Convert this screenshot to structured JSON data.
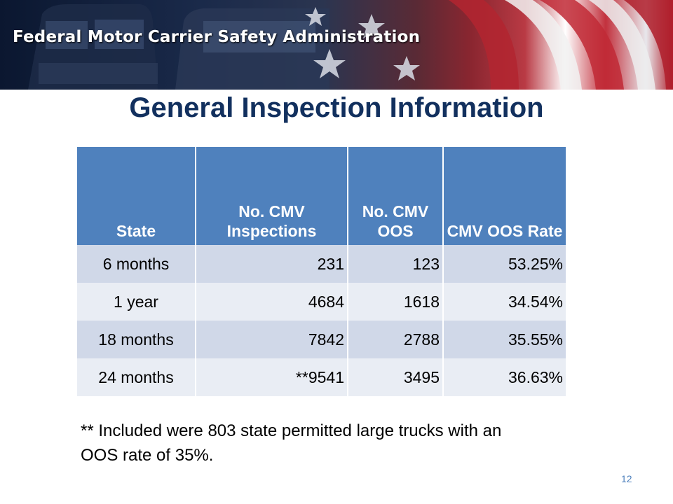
{
  "banner": {
    "agency": "Federal Motor Carrier Safety Administration"
  },
  "title": "General Inspection Information",
  "table": {
    "headers": [
      "State",
      "No. CMV Inspections",
      "No. CMV OOS",
      "CMV OOS Rate"
    ],
    "rows": [
      [
        "6 months",
        "231",
        "123",
        "53.25%"
      ],
      [
        "1 year",
        "4684",
        "1618",
        "34.54%"
      ],
      [
        "18 months",
        "7842",
        "2788",
        "35.55%"
      ],
      [
        "24 months",
        "**9541",
        "3495",
        "36.63%"
      ]
    ]
  },
  "footnote": "** Included were 803 state permitted large trucks with an OOS rate of 35%.",
  "page_number": "12",
  "colors": {
    "header": "#4f81bd",
    "row_odd": "#d0d8e8",
    "row_even": "#e9edf4",
    "title": "#12305e"
  }
}
